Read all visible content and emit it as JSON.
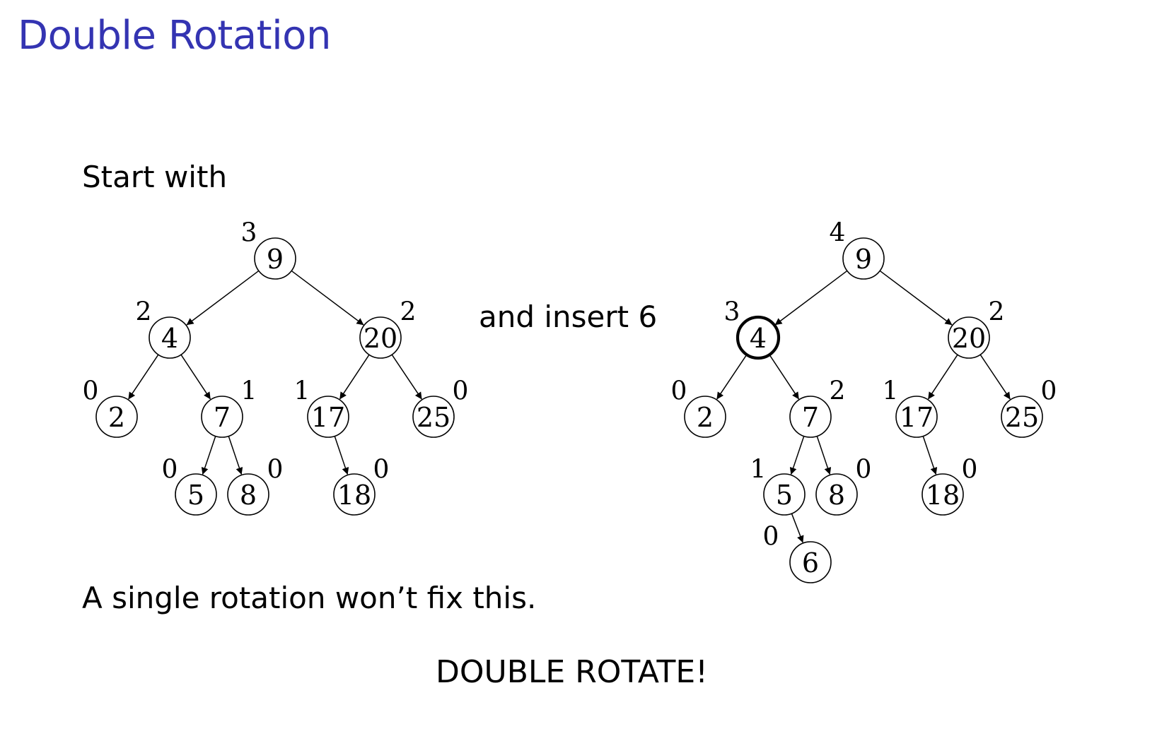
{
  "title": "Double Rotation",
  "texts": {
    "start": "Start with",
    "insert": "and insert 6",
    "single": "A single rotation won’t fix this.",
    "double": "DOUBLE ROTATE!"
  },
  "trees": [
    {
      "id": "tree-before",
      "nodes": [
        {
          "id": "n9",
          "value": "9",
          "height": "3"
        },
        {
          "id": "n4",
          "value": "4",
          "height": "2"
        },
        {
          "id": "n20",
          "value": "20",
          "height": "2"
        },
        {
          "id": "n2",
          "value": "2",
          "height": "0"
        },
        {
          "id": "n7",
          "value": "7",
          "height": "1"
        },
        {
          "id": "n17",
          "value": "17",
          "height": "1"
        },
        {
          "id": "n25",
          "value": "25",
          "height": "0"
        },
        {
          "id": "n5",
          "value": "5",
          "height": "0"
        },
        {
          "id": "n8",
          "value": "8",
          "height": "0"
        },
        {
          "id": "n18",
          "value": "18",
          "height": "0"
        }
      ],
      "edges": [
        [
          "n9",
          "n4"
        ],
        [
          "n9",
          "n20"
        ],
        [
          "n4",
          "n2"
        ],
        [
          "n4",
          "n7"
        ],
        [
          "n20",
          "n17"
        ],
        [
          "n20",
          "n25"
        ],
        [
          "n7",
          "n5"
        ],
        [
          "n7",
          "n8"
        ],
        [
          "n17",
          "n18"
        ]
      ]
    },
    {
      "id": "tree-after",
      "nodes": [
        {
          "id": "n9",
          "value": "9",
          "height": "4"
        },
        {
          "id": "n4",
          "value": "4",
          "height": "3",
          "highlight": true
        },
        {
          "id": "n20",
          "value": "20",
          "height": "2"
        },
        {
          "id": "n2",
          "value": "2",
          "height": "0"
        },
        {
          "id": "n7",
          "value": "7",
          "height": "2"
        },
        {
          "id": "n17",
          "value": "17",
          "height": "1"
        },
        {
          "id": "n25",
          "value": "25",
          "height": "0"
        },
        {
          "id": "n5",
          "value": "5",
          "height": "1"
        },
        {
          "id": "n8",
          "value": "8",
          "height": "0"
        },
        {
          "id": "n18",
          "value": "18",
          "height": "0"
        },
        {
          "id": "n6",
          "value": "6",
          "height": "0"
        }
      ],
      "edges": [
        [
          "n9",
          "n4"
        ],
        [
          "n9",
          "n20"
        ],
        [
          "n4",
          "n2"
        ],
        [
          "n4",
          "n7"
        ],
        [
          "n20",
          "n17"
        ],
        [
          "n20",
          "n25"
        ],
        [
          "n7",
          "n5"
        ],
        [
          "n7",
          "n8"
        ],
        [
          "n17",
          "n18"
        ],
        [
          "n5",
          "n6"
        ]
      ]
    }
  ]
}
